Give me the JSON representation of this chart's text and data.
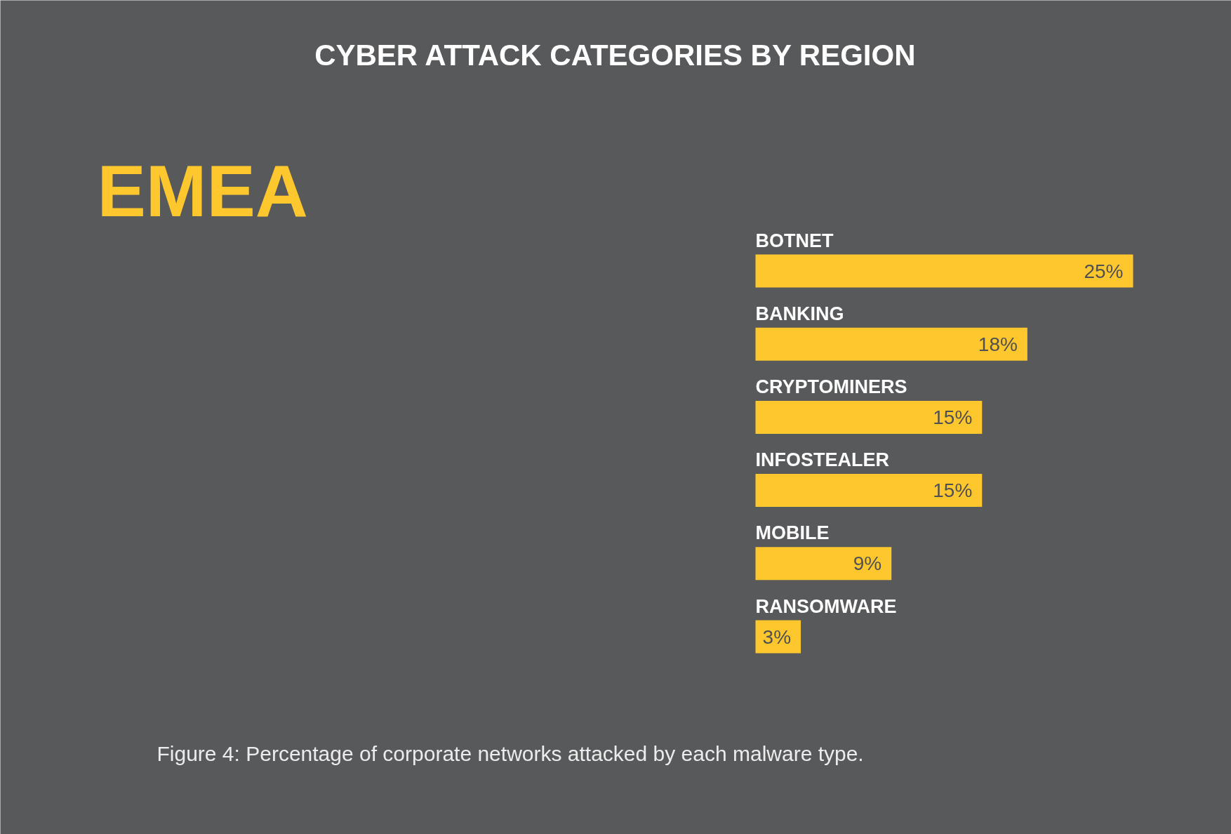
{
  "chart_data": {
    "type": "bar",
    "orientation": "horizontal",
    "title": "CYBER ATTACK CATEGORIES BY REGION",
    "subtitle": "EMEA",
    "categories": [
      "BOTNET",
      "BANKING",
      "CRYPTOMINERS",
      "INFOSTEALER",
      "MOBILE",
      "RANSOMWARE"
    ],
    "values": [
      25,
      18,
      15,
      15,
      9,
      3
    ],
    "value_labels": [
      "25%",
      "18%",
      "15%",
      "15%",
      "9%",
      "3%"
    ],
    "color": "#fec72e",
    "annotations": [
      "Figure 4: Percentage of corporate networks attacked by each malware type."
    ]
  }
}
